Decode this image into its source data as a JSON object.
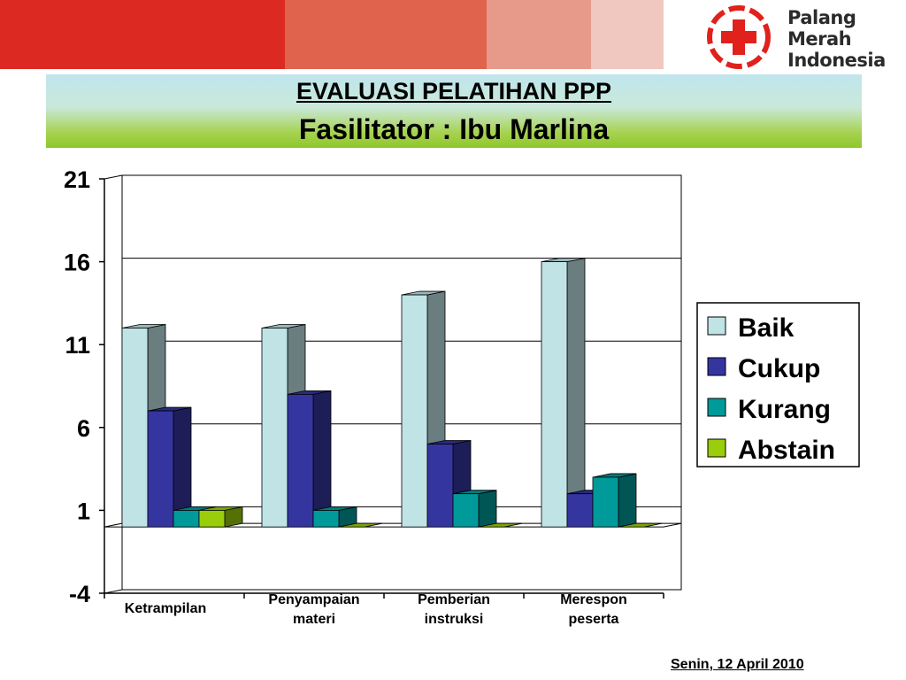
{
  "header": {
    "band_colors": [
      "#dc2a22",
      "#e0634e",
      "#e79a8a",
      "#f0c8c0"
    ],
    "logo": {
      "text_lines": [
        "Palang",
        "Merah",
        "Indonesia"
      ],
      "icon": "red-cross-icon",
      "color": "#e0211c"
    }
  },
  "title": {
    "line1": "EVALUASI PELATIHAN PPP",
    "line2": "Fasilitator  : Ibu Marlina"
  },
  "chart_data": {
    "type": "bar",
    "style": "3d-clustered",
    "categories": [
      "Ketrampilan",
      "Penyampaian materi",
      "Pemberian instruksi",
      "Merespon peserta"
    ],
    "category_labels": [
      [
        "Ketrampilan"
      ],
      [
        "Penyampaian",
        "materi"
      ],
      [
        "Pemberian",
        "instruksi"
      ],
      [
        "Merespon",
        "peserta"
      ]
    ],
    "series": [
      {
        "name": "Baik",
        "values": [
          12,
          12,
          14,
          16
        ],
        "color": "#c0e3e6"
      },
      {
        "name": "Cukup",
        "values": [
          7,
          8,
          5,
          2
        ],
        "color": "#3535a0"
      },
      {
        "name": "Kurang",
        "values": [
          1,
          1,
          2,
          3
        ],
        "color": "#009a9a"
      },
      {
        "name": "Abstain",
        "values": [
          1,
          0,
          0,
          0
        ],
        "color": "#9acd0a"
      }
    ],
    "ylim": [
      -4,
      21
    ],
    "yticks": [
      21,
      16,
      11,
      6,
      1,
      -4
    ],
    "grid": true,
    "legend": "right"
  },
  "footer": {
    "date": "Senin, 12 April 2010"
  }
}
